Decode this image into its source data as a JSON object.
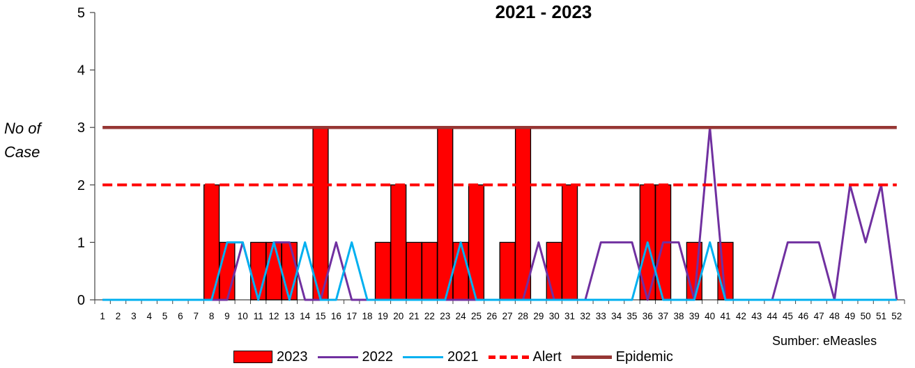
{
  "chart_data": {
    "type": "bar",
    "title": "2021 - 2023",
    "ylabel": "No of Case",
    "xlabel": "",
    "ylim": [
      0,
      5
    ],
    "yticks": [
      0,
      1,
      2,
      3,
      4,
      5
    ],
    "grid": false,
    "legend_position": "bottom",
    "categories": [
      "1",
      "2",
      "3",
      "4",
      "5",
      "6",
      "7",
      "8",
      "9",
      "10",
      "11",
      "12",
      "13",
      "14",
      "15",
      "16",
      "17",
      "18",
      "19",
      "20",
      "21",
      "22",
      "23",
      "24",
      "25",
      "26",
      "27",
      "28",
      "29",
      "30",
      "31",
      "32",
      "33",
      "34",
      "35",
      "36",
      "37",
      "38",
      "39",
      "40",
      "41",
      "42",
      "43",
      "44",
      "45",
      "46",
      "47",
      "48",
      "49",
      "50",
      "51",
      "52"
    ],
    "series": [
      {
        "name": "2023",
        "kind": "bar",
        "color": "#ff0000",
        "values": [
          0,
          0,
          0,
          0,
          0,
          0,
          0,
          2,
          1,
          0,
          1,
          1,
          1,
          0,
          3,
          0,
          0,
          0,
          1,
          2,
          1,
          1,
          3,
          1,
          2,
          0,
          1,
          3,
          0,
          1,
          2,
          0,
          0,
          0,
          0,
          2,
          2,
          0,
          1,
          0,
          1,
          0,
          0,
          0,
          0,
          0,
          0,
          0,
          0,
          0,
          0,
          0
        ]
      },
      {
        "name": "2022",
        "kind": "line",
        "color": "#7030a0",
        "values": [
          0,
          0,
          0,
          0,
          0,
          0,
          0,
          0,
          0,
          1,
          0,
          1,
          1,
          0,
          0,
          1,
          0,
          0,
          0,
          0,
          0,
          0,
          0,
          0,
          0,
          0,
          0,
          0,
          1,
          0,
          0,
          0,
          1,
          1,
          1,
          0,
          1,
          1,
          0,
          3,
          0,
          0,
          0,
          0,
          1,
          1,
          1,
          0,
          2,
          1,
          2,
          0
        ]
      },
      {
        "name": "2021",
        "kind": "line",
        "color": "#00b0f0",
        "values": [
          0,
          0,
          0,
          0,
          0,
          0,
          0,
          0,
          1,
          1,
          0,
          1,
          0,
          1,
          0,
          0,
          1,
          0,
          0,
          0,
          0,
          0,
          0,
          1,
          0,
          0,
          0,
          0,
          0,
          0,
          0,
          0,
          0,
          0,
          0,
          1,
          0,
          0,
          0,
          1,
          0,
          0,
          0,
          0,
          0,
          0,
          0,
          0,
          0,
          0,
          0,
          0
        ]
      },
      {
        "name": "Alert",
        "kind": "dashed-line",
        "color": "#ff0000",
        "values": [
          2,
          2,
          2,
          2,
          2,
          2,
          2,
          2,
          2,
          2,
          2,
          2,
          2,
          2,
          2,
          2,
          2,
          2,
          2,
          2,
          2,
          2,
          2,
          2,
          2,
          2,
          2,
          2,
          2,
          2,
          2,
          2,
          2,
          2,
          2,
          2,
          2,
          2,
          2,
          2,
          2,
          2,
          2,
          2,
          2,
          2,
          2,
          2,
          2,
          2,
          2,
          2
        ]
      },
      {
        "name": "Epidemic",
        "kind": "line",
        "color": "#963634",
        "values": [
          3,
          3,
          3,
          3,
          3,
          3,
          3,
          3,
          3,
          3,
          3,
          3,
          3,
          3,
          3,
          3,
          3,
          3,
          3,
          3,
          3,
          3,
          3,
          3,
          3,
          3,
          3,
          3,
          3,
          3,
          3,
          3,
          3,
          3,
          3,
          3,
          3,
          3,
          3,
          3,
          3,
          3,
          3,
          3,
          3,
          3,
          3,
          3,
          3,
          3,
          3,
          3
        ]
      }
    ],
    "annotation": "Sumber: eMeasles"
  }
}
